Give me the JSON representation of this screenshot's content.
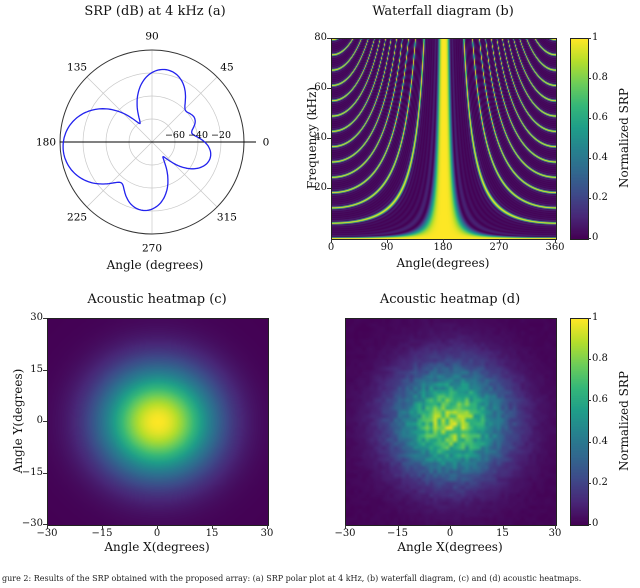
{
  "figure": {
    "caption": "gure 2: Results of the SRP obtained with the proposed array: (a) SRP polar plot at 4 kHz, (b) waterfall diagram, (c) and (d) acoustic heatmaps."
  },
  "panels": {
    "a": {
      "title": "SRP (dB) at 4 kHz (a)",
      "xlabel": "Angle (degrees)",
      "angle_ticks": [
        0,
        45,
        90,
        135,
        180,
        225,
        270,
        315
      ],
      "radial_ticks": [
        -60,
        -40,
        -20
      ]
    },
    "b": {
      "title": "Waterfall diagram (b)",
      "xlabel": "Angle(degrees)",
      "ylabel": "Frequency (kHz)",
      "x_ticks": [
        0,
        90,
        180,
        270,
        360
      ],
      "y_ticks": [
        20,
        40,
        60,
        80
      ],
      "colorbar": {
        "label": "Normalized SRP",
        "ticks": [
          0,
          0.2,
          0.4,
          0.6,
          0.8,
          1
        ]
      }
    },
    "c": {
      "title": "Acoustic heatmap (c)",
      "xlabel": "Angle X(degrees)",
      "ylabel": "Angle Y(degrees)",
      "x_ticks": [
        -30,
        -15,
        0,
        15,
        30
      ],
      "y_ticks": [
        -30,
        -15,
        0,
        15,
        30
      ]
    },
    "d": {
      "title": "Acoustic heatmap (d)",
      "xlabel": "Angle X(degrees)",
      "x_ticks": [
        -30,
        -15,
        0,
        15,
        30
      ],
      "colorbar": {
        "label": "Normalized SRP",
        "ticks": [
          0,
          0.2,
          0.4,
          0.6,
          0.8,
          1
        ]
      }
    }
  },
  "chart_data": [
    {
      "type": "polar",
      "panel": "a",
      "title": "SRP (dB) at 4 kHz",
      "angle_ticks_deg": [
        0,
        45,
        90,
        135,
        180,
        225,
        270,
        315
      ],
      "radial_ticks_db": [
        -60,
        -40,
        -20
      ],
      "radial_range_db": [
        -80,
        0
      ],
      "line_color": "#2222ee",
      "lobes": [
        {
          "angle_deg": 78,
          "amp": 0.16,
          "width_deg": 13
        },
        {
          "angle_deg": 185,
          "amp": 0.75,
          "width_deg": 16
        },
        {
          "angle_deg": 262,
          "amp": 0.1,
          "width_deg": 13
        },
        {
          "angle_deg": 345,
          "amp": 0.042,
          "width_deg": 12
        },
        {
          "angle_deg": 30,
          "amp": 0.013,
          "width_deg": 10
        }
      ]
    },
    {
      "type": "heatmap",
      "panel": "b",
      "title": "Waterfall diagram",
      "x_label": "Angle(degrees)",
      "y_label": "Frequency (kHz)",
      "x_range": [
        0,
        360
      ],
      "y_range": [
        0,
        80
      ],
      "value_range": [
        0,
        1
      ],
      "colormap": "viridis",
      "legend": "Normalized SRP",
      "model": {
        "kind": "delay-and-sum-beampattern",
        "mics": 8,
        "steer_deg": 180,
        "max_phase_cycles": 6.5
      }
    },
    {
      "type": "heatmap",
      "panel": "c",
      "title": "Acoustic heatmap",
      "x_label": "Angle X(degrees)",
      "y_label": "Angle Y(degrees)",
      "x_range": [
        -30,
        30
      ],
      "y_range": [
        -30,
        30
      ],
      "value_range": [
        0,
        1
      ],
      "colormap": "viridis",
      "model": {
        "kind": "gaussian",
        "center": [
          0,
          0
        ],
        "sigma_deg": 11
      }
    },
    {
      "type": "heatmap",
      "panel": "d",
      "title": "Acoustic heatmap",
      "x_label": "Angle X(degrees)",
      "x_range": [
        -30,
        30
      ],
      "y_range": [
        -30,
        30
      ],
      "value_range": [
        0,
        1
      ],
      "colormap": "viridis",
      "legend": "Normalized SRP",
      "model": {
        "kind": "gaussian-speckle",
        "center": [
          0,
          0
        ],
        "sigma_deg": 11,
        "noise": 0.35
      }
    }
  ]
}
